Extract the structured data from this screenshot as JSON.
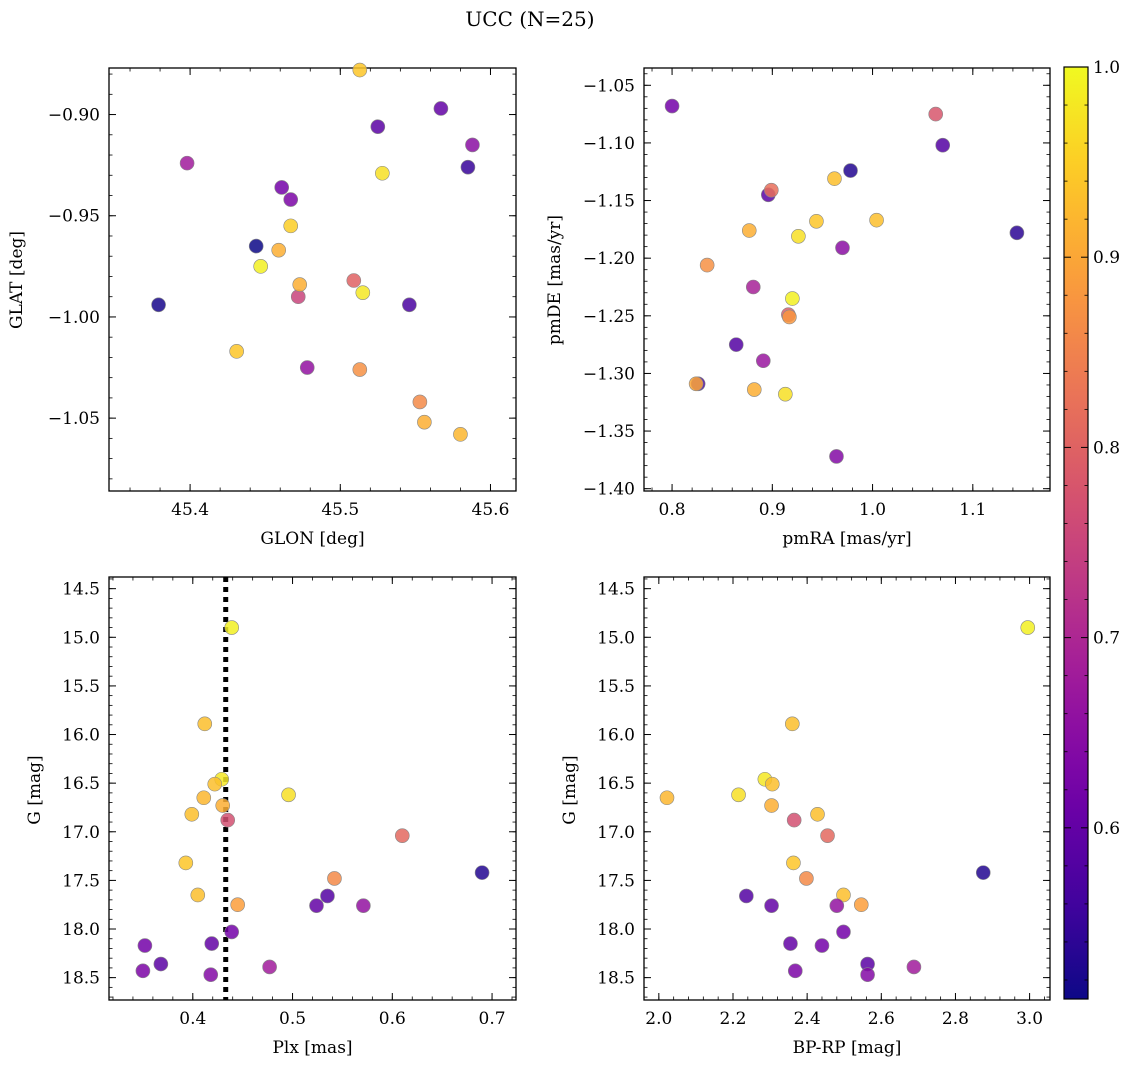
{
  "figure": {
    "title": "UCC (N=25)"
  },
  "colorbar": {
    "colormap": "plasma",
    "range": [
      0.51,
      1.0
    ],
    "ticks": [
      0.6,
      0.7,
      0.8,
      0.9,
      1.0
    ],
    "tick_labels": [
      "0.6",
      "0.7",
      "0.8",
      "0.9",
      "1.0"
    ]
  },
  "chart_data": [
    {
      "type": "scatter",
      "xlabel": "GLON [deg]",
      "ylabel": "GLAT [deg]",
      "xlim": [
        45.346,
        45.617
      ],
      "ylim": [
        -1.086,
        -0.877
      ],
      "y_inverted": false,
      "xticks": [
        45.4,
        45.5,
        45.6
      ],
      "xtick_labels": [
        "45.4",
        "45.5",
        "45.6"
      ],
      "yticks": [
        -0.9,
        -0.95,
        -1.0,
        -1.05
      ],
      "ytick_labels": [
        "−0.90",
        "−0.95",
        "−1.00",
        "−1.05"
      ],
      "points": [
        {
          "x": 45.379,
          "y": -0.994,
          "c": 0.52
        },
        {
          "x": 45.398,
          "y": -0.924,
          "c": 0.68
        },
        {
          "x": 45.431,
          "y": -1.017,
          "c": 0.94
        },
        {
          "x": 45.444,
          "y": -0.965,
          "c": 0.51
        },
        {
          "x": 45.447,
          "y": -0.975,
          "c": 0.99
        },
        {
          "x": 45.459,
          "y": -0.967,
          "c": 0.91
        },
        {
          "x": 45.461,
          "y": -0.936,
          "c": 0.62
        },
        {
          "x": 45.467,
          "y": -0.955,
          "c": 0.95
        },
        {
          "x": 45.467,
          "y": -0.942,
          "c": 0.63
        },
        {
          "x": 45.472,
          "y": -0.99,
          "c": 0.75
        },
        {
          "x": 45.473,
          "y": -0.984,
          "c": 0.91
        },
        {
          "x": 45.478,
          "y": -1.025,
          "c": 0.66
        },
        {
          "x": 45.509,
          "y": -0.982,
          "c": 0.8
        },
        {
          "x": 45.513,
          "y": -1.026,
          "c": 0.87
        },
        {
          "x": 45.513,
          "y": -0.878,
          "c": 0.94
        },
        {
          "x": 45.515,
          "y": -0.988,
          "c": 0.98
        },
        {
          "x": 45.525,
          "y": -0.906,
          "c": 0.59
        },
        {
          "x": 45.528,
          "y": -0.929,
          "c": 0.97
        },
        {
          "x": 45.546,
          "y": -0.994,
          "c": 0.57
        },
        {
          "x": 45.553,
          "y": -1.042,
          "c": 0.86
        },
        {
          "x": 45.556,
          "y": -1.052,
          "c": 0.91
        },
        {
          "x": 45.567,
          "y": -0.897,
          "c": 0.6
        },
        {
          "x": 45.58,
          "y": -1.058,
          "c": 0.92
        },
        {
          "x": 45.585,
          "y": -0.926,
          "c": 0.55
        },
        {
          "x": 45.588,
          "y": -0.915,
          "c": 0.65
        }
      ]
    },
    {
      "type": "scatter",
      "xlabel": "pmRA [mas/yr]",
      "ylabel": "pmDE [mas/yr]",
      "xlim": [
        0.772,
        1.177
      ],
      "ylim": [
        -1.402,
        -1.035
      ],
      "y_inverted": false,
      "xticks": [
        0.8,
        0.9,
        1.0,
        1.1
      ],
      "xtick_labels": [
        "0.8",
        "0.9",
        "1.0",
        "1.1"
      ],
      "yticks": [
        -1.05,
        -1.1,
        -1.15,
        -1.2,
        -1.25,
        -1.3,
        -1.35,
        -1.4
      ],
      "ytick_labels": [
        "−1.05",
        "−1.10",
        "−1.15",
        "−1.20",
        "−1.25",
        "−1.30",
        "−1.35",
        "−1.40"
      ],
      "points": [
        {
          "x": 0.8,
          "y": -1.068,
          "c": 0.62
        },
        {
          "x": 0.826,
          "y": -1.309,
          "c": 0.57
        },
        {
          "x": 0.824,
          "y": -1.309,
          "c": 0.9
        },
        {
          "x": 0.835,
          "y": -1.206,
          "c": 0.87
        },
        {
          "x": 0.864,
          "y": -1.275,
          "c": 0.58
        },
        {
          "x": 0.877,
          "y": -1.176,
          "c": 0.91
        },
        {
          "x": 0.881,
          "y": -1.225,
          "c": 0.69
        },
        {
          "x": 0.882,
          "y": -1.314,
          "c": 0.91
        },
        {
          "x": 0.891,
          "y": -1.289,
          "c": 0.67
        },
        {
          "x": 0.896,
          "y": -1.145,
          "c": 0.59
        },
        {
          "x": 0.899,
          "y": -1.141,
          "c": 0.82
        },
        {
          "x": 0.913,
          "y": -1.318,
          "c": 0.97
        },
        {
          "x": 0.916,
          "y": -1.249,
          "c": 0.79
        },
        {
          "x": 0.917,
          "y": -1.251,
          "c": 0.88
        },
        {
          "x": 0.92,
          "y": -1.235,
          "c": 0.99
        },
        {
          "x": 0.926,
          "y": -1.181,
          "c": 0.97
        },
        {
          "x": 0.962,
          "y": -1.131,
          "c": 0.93
        },
        {
          "x": 0.964,
          "y": -1.372,
          "c": 0.64
        },
        {
          "x": 0.944,
          "y": -1.168,
          "c": 0.94
        },
        {
          "x": 0.97,
          "y": -1.191,
          "c": 0.65
        },
        {
          "x": 0.978,
          "y": -1.124,
          "c": 0.53
        },
        {
          "x": 1.004,
          "y": -1.167,
          "c": 0.93
        },
        {
          "x": 1.063,
          "y": -1.075,
          "c": 0.78
        },
        {
          "x": 1.07,
          "y": -1.102,
          "c": 0.58
        },
        {
          "x": 1.144,
          "y": -1.178,
          "c": 0.54
        }
      ]
    },
    {
      "type": "scatter",
      "xlabel": "Plx [mas]",
      "ylabel": "G [mag]",
      "xlim": [
        0.316,
        0.724
      ],
      "ylim": [
        18.73,
        14.38
      ],
      "y_inverted": true,
      "xticks": [
        0.4,
        0.5,
        0.6,
        0.7
      ],
      "xtick_labels": [
        "0.4",
        "0.5",
        "0.6",
        "0.7"
      ],
      "yticks": [
        14.5,
        15.0,
        15.5,
        16.0,
        16.5,
        17.0,
        17.5,
        18.0,
        18.5
      ],
      "ytick_labels": [
        "14.5",
        "15.0",
        "15.5",
        "16.0",
        "16.5",
        "17.0",
        "17.5",
        "18.0",
        "18.5"
      ],
      "vline": {
        "x": 0.433,
        "style": "dotted"
      },
      "points": [
        {
          "x": 0.439,
          "y": 14.9,
          "c": 0.99
        },
        {
          "x": 0.412,
          "y": 15.89,
          "c": 0.93
        },
        {
          "x": 0.429,
          "y": 16.46,
          "c": 0.98
        },
        {
          "x": 0.422,
          "y": 16.51,
          "c": 0.93
        },
        {
          "x": 0.411,
          "y": 16.65,
          "c": 0.92
        },
        {
          "x": 0.496,
          "y": 16.62,
          "c": 0.97
        },
        {
          "x": 0.43,
          "y": 16.73,
          "c": 0.91
        },
        {
          "x": 0.399,
          "y": 16.82,
          "c": 0.93
        },
        {
          "x": 0.435,
          "y": 16.88,
          "c": 0.77
        },
        {
          "x": 0.61,
          "y": 17.04,
          "c": 0.81
        },
        {
          "x": 0.393,
          "y": 17.32,
          "c": 0.94
        },
        {
          "x": 0.69,
          "y": 17.42,
          "c": 0.53
        },
        {
          "x": 0.542,
          "y": 17.48,
          "c": 0.86
        },
        {
          "x": 0.405,
          "y": 17.65,
          "c": 0.93
        },
        {
          "x": 0.535,
          "y": 17.66,
          "c": 0.58
        },
        {
          "x": 0.445,
          "y": 17.75,
          "c": 0.89
        },
        {
          "x": 0.524,
          "y": 17.76,
          "c": 0.6
        },
        {
          "x": 0.571,
          "y": 17.76,
          "c": 0.66
        },
        {
          "x": 0.439,
          "y": 18.03,
          "c": 0.62
        },
        {
          "x": 0.419,
          "y": 18.15,
          "c": 0.6
        },
        {
          "x": 0.352,
          "y": 18.17,
          "c": 0.62
        },
        {
          "x": 0.368,
          "y": 18.36,
          "c": 0.59
        },
        {
          "x": 0.477,
          "y": 18.39,
          "c": 0.68
        },
        {
          "x": 0.35,
          "y": 18.43,
          "c": 0.63
        },
        {
          "x": 0.418,
          "y": 18.47,
          "c": 0.64
        }
      ]
    },
    {
      "type": "scatter",
      "xlabel": "BP-RP [mag]",
      "ylabel": "G [mag]",
      "xlim": [
        1.96,
        3.055
      ],
      "ylim": [
        18.73,
        14.38
      ],
      "y_inverted": true,
      "xticks": [
        2.0,
        2.2,
        2.4,
        2.6,
        2.8,
        3.0
      ],
      "xtick_labels": [
        "2.0",
        "2.2",
        "2.4",
        "2.6",
        "2.8",
        "3.0"
      ],
      "yticks": [
        14.5,
        15.0,
        15.5,
        16.0,
        16.5,
        17.0,
        17.5,
        18.0,
        18.5
      ],
      "ytick_labels": [
        "14.5",
        "15.0",
        "15.5",
        "16.0",
        "16.5",
        "17.0",
        "17.5",
        "18.0",
        "18.5"
      ],
      "points": [
        {
          "x": 2.995,
          "y": 14.9,
          "c": 0.99
        },
        {
          "x": 2.36,
          "y": 15.89,
          "c": 0.93
        },
        {
          "x": 2.286,
          "y": 16.46,
          "c": 0.98
        },
        {
          "x": 2.306,
          "y": 16.51,
          "c": 0.93
        },
        {
          "x": 2.022,
          "y": 16.65,
          "c": 0.92
        },
        {
          "x": 2.215,
          "y": 16.62,
          "c": 0.97
        },
        {
          "x": 2.304,
          "y": 16.73,
          "c": 0.91
        },
        {
          "x": 2.428,
          "y": 16.82,
          "c": 0.93
        },
        {
          "x": 2.365,
          "y": 16.88,
          "c": 0.77
        },
        {
          "x": 2.455,
          "y": 17.04,
          "c": 0.81
        },
        {
          "x": 2.363,
          "y": 17.32,
          "c": 0.94
        },
        {
          "x": 2.875,
          "y": 17.42,
          "c": 0.53
        },
        {
          "x": 2.398,
          "y": 17.48,
          "c": 0.86
        },
        {
          "x": 2.498,
          "y": 17.65,
          "c": 0.93
        },
        {
          "x": 2.236,
          "y": 17.66,
          "c": 0.58
        },
        {
          "x": 2.546,
          "y": 17.75,
          "c": 0.89
        },
        {
          "x": 2.304,
          "y": 17.76,
          "c": 0.6
        },
        {
          "x": 2.48,
          "y": 17.76,
          "c": 0.66
        },
        {
          "x": 2.498,
          "y": 18.03,
          "c": 0.62
        },
        {
          "x": 2.355,
          "y": 18.15,
          "c": 0.6
        },
        {
          "x": 2.44,
          "y": 18.17,
          "c": 0.62
        },
        {
          "x": 2.563,
          "y": 18.36,
          "c": 0.59
        },
        {
          "x": 2.688,
          "y": 18.39,
          "c": 0.68
        },
        {
          "x": 2.368,
          "y": 18.43,
          "c": 0.63
        },
        {
          "x": 2.563,
          "y": 18.47,
          "c": 0.64
        }
      ]
    }
  ]
}
